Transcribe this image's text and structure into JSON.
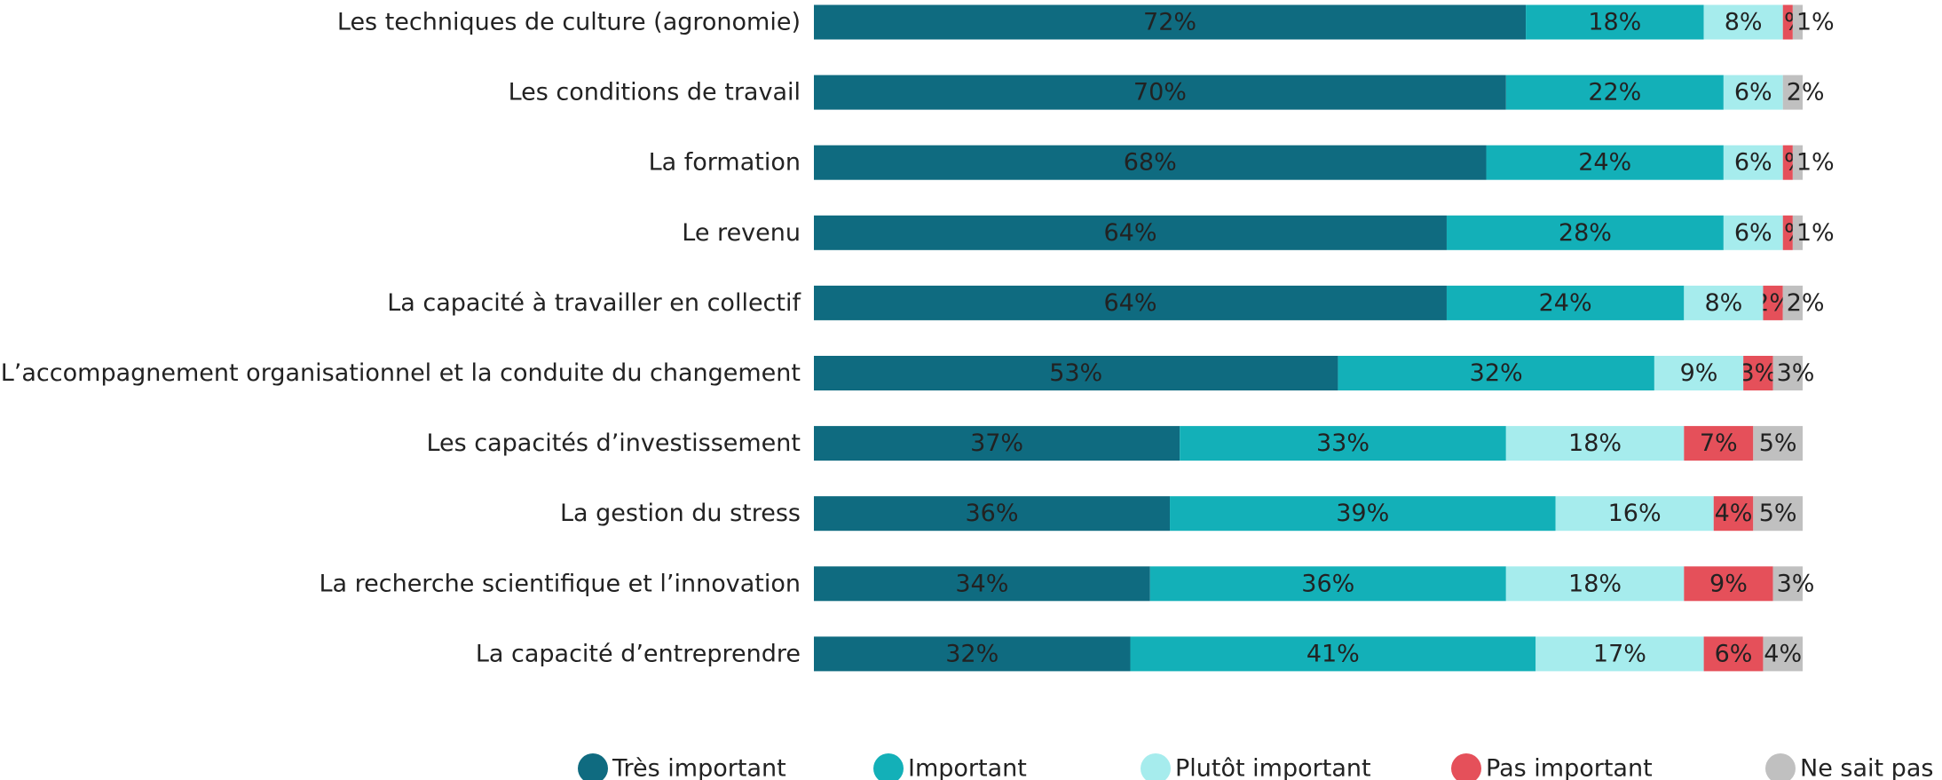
{
  "chart_data": {
    "type": "hbar-stacked",
    "categories": [
      "Les techniques de culture (agronomie)",
      "Les conditions de travail",
      "La formation",
      "Le revenu",
      "La capacité à travailler en collectif",
      "L’accompagnement organisationnel et la conduite du changement",
      "Les capacités d’investissement",
      "La gestion du stress",
      "La recherche scientifique et l’innovation",
      "La capacité d’entreprendre"
    ],
    "xlim": [
      0,
      100
    ],
    "legend": "bottom",
    "series": [
      {
        "name": "Très important",
        "color": "#0f6b80",
        "values": [
          72,
          70,
          68,
          64,
          64,
          53,
          37,
          36,
          34,
          32
        ],
        "value_labels": [
          "72%",
          "70%",
          "68%",
          "64%",
          "64%",
          "53%",
          "37%",
          "36%",
          "34%",
          "32%"
        ]
      },
      {
        "name": "Important",
        "color": "#13b0b8",
        "values": [
          18,
          22,
          24,
          28,
          24,
          32,
          33,
          39,
          36,
          41
        ],
        "value_labels": [
          "18%",
          "22%",
          "24%",
          "28%",
          "24%",
          "32%",
          "33%",
          "39%",
          "36%",
          "41%"
        ]
      },
      {
        "name": "Plutôt important",
        "color": "#a6eced",
        "values": [
          8,
          6,
          6,
          6,
          8,
          9,
          18,
          16,
          18,
          17
        ],
        "value_labels": [
          "8%",
          "6%",
          "6%",
          "6%",
          "8%",
          "9%",
          "18%",
          "16%",
          "18%",
          "17%"
        ]
      },
      {
        "name": "Pas important",
        "color": "#e5505a",
        "values": [
          1,
          null,
          1,
          1,
          2,
          3,
          7,
          4,
          9,
          6
        ],
        "value_labels": [
          "1%",
          null,
          "1%",
          "1%",
          "2%",
          "3%",
          "7%",
          "4%",
          "9%",
          "6%"
        ]
      },
      {
        "name": "Ne sait pas",
        "color": "#c0c0c0",
        "values": [
          1,
          2,
          1,
          1,
          2,
          3,
          5,
          5,
          3,
          4
        ],
        "value_labels": [
          "1%",
          "2%",
          "1%",
          "1%",
          "2%",
          "3%",
          "5%",
          "5%",
          "3%",
          "4%"
        ]
      }
    ]
  }
}
